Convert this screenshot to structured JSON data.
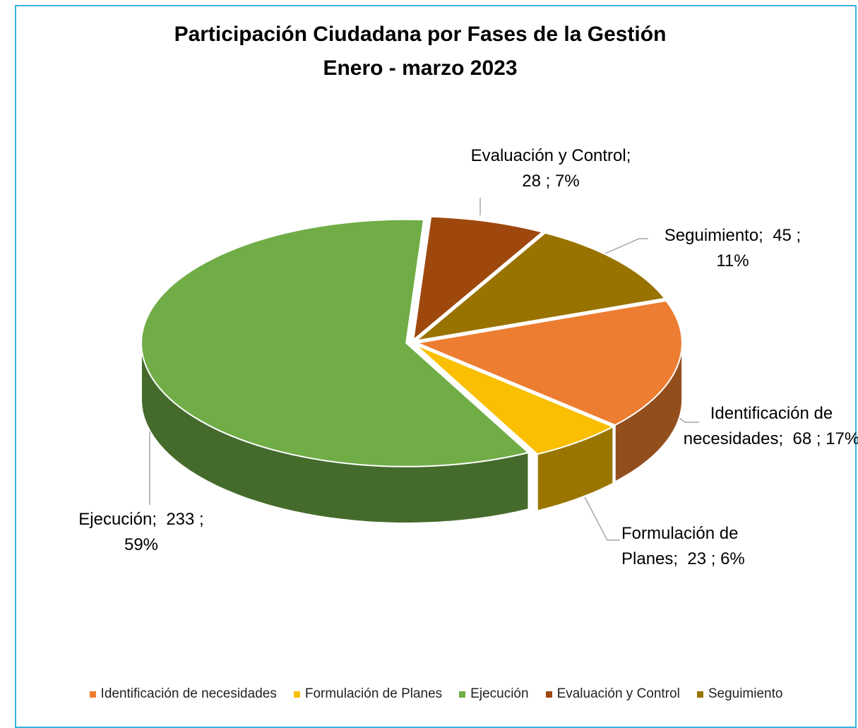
{
  "chart_data": {
    "type": "pie",
    "title": "Participación Ciudadana por Fases de la Gestión",
    "subtitle": "Enero - marzo 2023",
    "categories": [
      "Identificación de necesidades",
      "Formulación de Planes",
      "Ejecución",
      "Evaluación y Control",
      "Seguimiento"
    ],
    "values": [
      68,
      23,
      233,
      28,
      45
    ],
    "value_labels": [
      "Identificación de necesidades;  68 ; 17%",
      "Formulación de Planes;  23 ; 6%",
      "Ejecución;  233 ; 59%",
      "Evaluación y Control;  28 ; 7%",
      "Seguimiento;  45 ; 11%"
    ],
    "colors": [
      "#ed7d31",
      "#f9bf00",
      "#70ad47",
      "#9e480e",
      "#997300"
    ],
    "legend": "bottom"
  }
}
